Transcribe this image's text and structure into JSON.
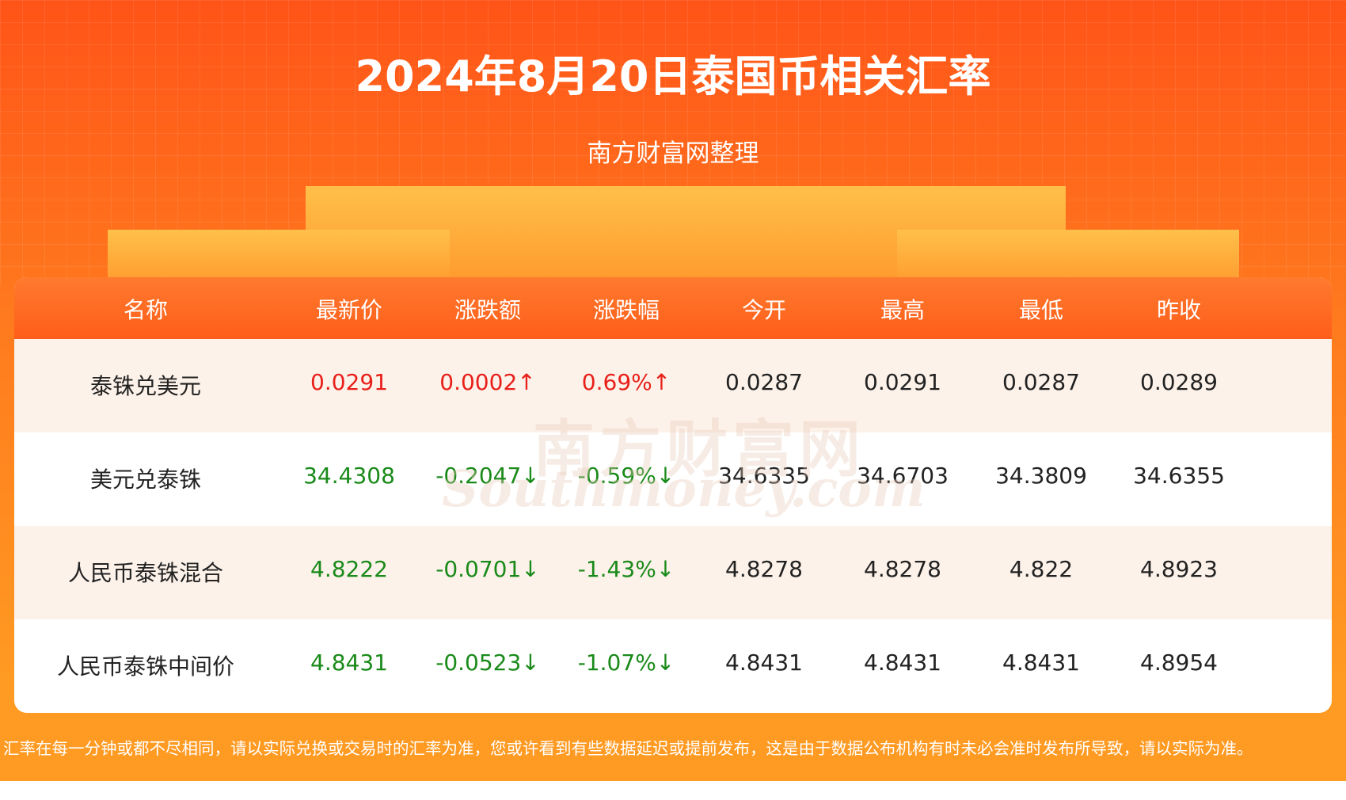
{
  "header": {
    "title": "2024年8月20日泰国币相关汇率",
    "subtitle": "南方财富网整理"
  },
  "watermark": {
    "cn": "南方财富网",
    "en": "Southmoney.com"
  },
  "table": {
    "columns": [
      "名称",
      "最新价",
      "涨跌额",
      "涨跌幅",
      "今开",
      "最高",
      "最低",
      "昨收"
    ],
    "rows": [
      {
        "color": "#e8201a",
        "cells": [
          "泰铢兑美元",
          "0.0291",
          "0.0002↑",
          "0.69%↑",
          "0.0287",
          "0.0291",
          "0.0287",
          "0.0289"
        ]
      },
      {
        "color": "#1a8a1a",
        "cells": [
          "美元兑泰铢",
          "34.4308",
          "-0.2047↓",
          "-0.59%↓",
          "34.6335",
          "34.6703",
          "34.3809",
          "34.6355"
        ]
      },
      {
        "color": "#1a8a1a",
        "cells": [
          "人民币泰铢混合",
          "4.8222",
          "-0.0701↓",
          "-1.43%↓",
          "4.8278",
          "4.8278",
          "4.822",
          "4.8923"
        ]
      },
      {
        "color": "#1a8a1a",
        "cells": [
          "人民币泰铢中间价",
          "4.8431",
          "-0.0523↓",
          "-1.07%↓",
          "4.8431",
          "4.8431",
          "4.8431",
          "4.8954"
        ]
      }
    ]
  },
  "footer": {
    "note": "汇率在每一分钟或都不尽相同，请以实际兑换或交易时的汇率为准，您或许看到有些数据延迟或提前发布，这是由于数据公布机构有时未必会准时发布所导致，请以实际为准。"
  }
}
